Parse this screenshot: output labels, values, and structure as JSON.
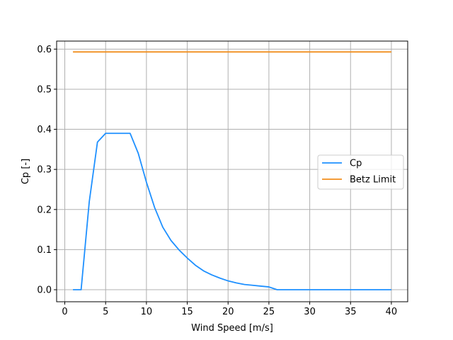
{
  "chart_data": {
    "type": "line",
    "xlabel": "Wind Speed [m/s]",
    "ylabel": "Cp [-]",
    "xlim": [
      -1,
      42
    ],
    "ylim": [
      -0.03,
      0.62
    ],
    "xticks": [
      0,
      5,
      10,
      15,
      20,
      25,
      30,
      35,
      40
    ],
    "yticks": [
      0.0,
      0.1,
      0.2,
      0.3,
      0.4,
      0.5,
      0.6
    ],
    "grid": true,
    "legend_position": "center-right",
    "series": [
      {
        "name": "Cp",
        "color": "#1e90ff",
        "x": [
          1,
          2,
          3,
          4,
          5,
          6,
          7,
          8,
          9,
          10,
          11,
          12,
          13,
          14,
          15,
          16,
          17,
          18,
          19,
          20,
          21,
          22,
          23,
          24,
          25,
          26,
          27,
          28,
          29,
          30,
          31,
          32,
          33,
          34,
          35,
          36,
          37,
          38,
          39,
          40
        ],
        "y": [
          0,
          0,
          0.22,
          0.368,
          0.39,
          0.39,
          0.39,
          0.39,
          0.34,
          0.268,
          0.205,
          0.156,
          0.123,
          0.099,
          0.079,
          0.061,
          0.047,
          0.037,
          0.029,
          0.022,
          0.017,
          0.013,
          0.011,
          0.009,
          0.007,
          0,
          0,
          0,
          0,
          0,
          0,
          0,
          0,
          0,
          0,
          0,
          0,
          0,
          0,
          0
        ]
      },
      {
        "name": "Betz Limit",
        "color": "#f28e1c",
        "x": [
          1,
          40
        ],
        "y": [
          0.593,
          0.593
        ]
      }
    ]
  }
}
